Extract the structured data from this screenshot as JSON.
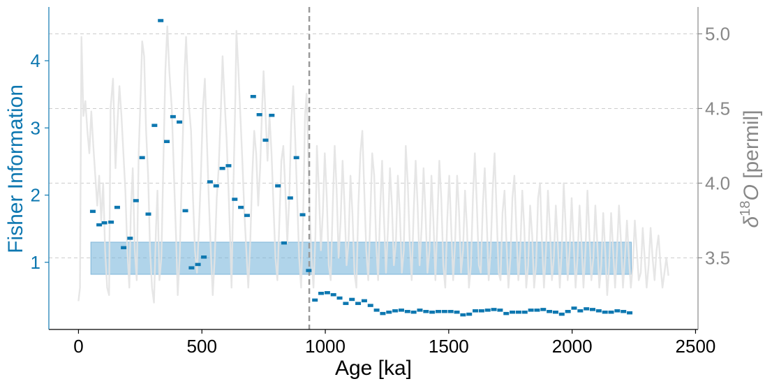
{
  "chart_data": {
    "type": "scatter",
    "xlabel": "Age [ka]",
    "ylabel": "Fisher Information",
    "ylabel_right": "δ18O [permil]",
    "xlim": [
      -120,
      2510
    ],
    "ylim": [
      0.0,
      4.8
    ],
    "ylim_right": [
      3.02,
      5.18
    ],
    "x_ticks": [
      {
        "value": 0,
        "label": "0"
      },
      {
        "value": 500,
        "label": "500"
      },
      {
        "value": 1000,
        "label": "1000"
      },
      {
        "value": 1500,
        "label": "1500"
      },
      {
        "value": 2000,
        "label": "2000"
      },
      {
        "value": 2500,
        "label": "2500"
      }
    ],
    "y_ticks": [
      {
        "value": 1,
        "label": "1"
      },
      {
        "value": 2,
        "label": "2"
      },
      {
        "value": 3,
        "label": "3"
      },
      {
        "value": 4,
        "label": "4"
      }
    ],
    "y_right_ticks": [
      {
        "value": 3.5,
        "label": "3.5"
      },
      {
        "value": 4.0,
        "label": "4.0"
      },
      {
        "value": 4.5,
        "label": "4.5"
      },
      {
        "value": 5.0,
        "label": "5.0"
      }
    ],
    "grid": "right-axis horizontal dashed",
    "colors": {
      "fisher": "#0d77b0",
      "d18o": "#e3e3e3",
      "band": "#6fb0d9",
      "vline": "#999999",
      "right_axis": "#888888"
    },
    "vline_x": 935,
    "band": {
      "x0": 50,
      "x1": 2240,
      "y0": 0.82,
      "y1": 1.3
    },
    "fisher_points": [
      {
        "x": 58,
        "y": 1.76
      },
      {
        "x": 84,
        "y": 1.56
      },
      {
        "x": 105,
        "y": 1.59
      },
      {
        "x": 132,
        "y": 1.6
      },
      {
        "x": 157,
        "y": 1.82
      },
      {
        "x": 183,
        "y": 1.22
      },
      {
        "x": 209,
        "y": 1.36
      },
      {
        "x": 233,
        "y": 1.92
      },
      {
        "x": 258,
        "y": 2.56
      },
      {
        "x": 283,
        "y": 1.72
      },
      {
        "x": 308,
        "y": 3.04
      },
      {
        "x": 333,
        "y": 4.6
      },
      {
        "x": 358,
        "y": 2.8
      },
      {
        "x": 383,
        "y": 3.17
      },
      {
        "x": 409,
        "y": 3.09
      },
      {
        "x": 433,
        "y": 1.77
      },
      {
        "x": 458,
        "y": 0.92
      },
      {
        "x": 484,
        "y": 0.97
      },
      {
        "x": 508,
        "y": 1.08
      },
      {
        "x": 533,
        "y": 2.2
      },
      {
        "x": 558,
        "y": 2.14
      },
      {
        "x": 583,
        "y": 2.4
      },
      {
        "x": 608,
        "y": 2.44
      },
      {
        "x": 633,
        "y": 1.94
      },
      {
        "x": 658,
        "y": 1.82
      },
      {
        "x": 683,
        "y": 1.7
      },
      {
        "x": 708,
        "y": 3.47
      },
      {
        "x": 733,
        "y": 3.2
      },
      {
        "x": 758,
        "y": 2.82
      },
      {
        "x": 783,
        "y": 3.19
      },
      {
        "x": 808,
        "y": 2.14
      },
      {
        "x": 833,
        "y": 1.29
      },
      {
        "x": 858,
        "y": 1.96
      },
      {
        "x": 883,
        "y": 2.56
      },
      {
        "x": 908,
        "y": 1.71
      },
      {
        "x": 933,
        "y": 0.88
      },
      {
        "x": 958,
        "y": 0.44
      },
      {
        "x": 983,
        "y": 0.54
      },
      {
        "x": 1008,
        "y": 0.55
      },
      {
        "x": 1033,
        "y": 0.52
      },
      {
        "x": 1058,
        "y": 0.47
      },
      {
        "x": 1083,
        "y": 0.39
      },
      {
        "x": 1108,
        "y": 0.45
      },
      {
        "x": 1133,
        "y": 0.39
      },
      {
        "x": 1158,
        "y": 0.43
      },
      {
        "x": 1183,
        "y": 0.36
      },
      {
        "x": 1208,
        "y": 0.29
      },
      {
        "x": 1233,
        "y": 0.24
      },
      {
        "x": 1258,
        "y": 0.26
      },
      {
        "x": 1283,
        "y": 0.28
      },
      {
        "x": 1308,
        "y": 0.29
      },
      {
        "x": 1333,
        "y": 0.27
      },
      {
        "x": 1358,
        "y": 0.26
      },
      {
        "x": 1383,
        "y": 0.29
      },
      {
        "x": 1408,
        "y": 0.27
      },
      {
        "x": 1433,
        "y": 0.26
      },
      {
        "x": 1458,
        "y": 0.27
      },
      {
        "x": 1483,
        "y": 0.27
      },
      {
        "x": 1508,
        "y": 0.27
      },
      {
        "x": 1533,
        "y": 0.26
      },
      {
        "x": 1558,
        "y": 0.22
      },
      {
        "x": 1583,
        "y": 0.23
      },
      {
        "x": 1608,
        "y": 0.28
      },
      {
        "x": 1633,
        "y": 0.28
      },
      {
        "x": 1658,
        "y": 0.29
      },
      {
        "x": 1683,
        "y": 0.3
      },
      {
        "x": 1708,
        "y": 0.29
      },
      {
        "x": 1733,
        "y": 0.24
      },
      {
        "x": 1758,
        "y": 0.26
      },
      {
        "x": 1783,
        "y": 0.26
      },
      {
        "x": 1808,
        "y": 0.26
      },
      {
        "x": 1833,
        "y": 0.29
      },
      {
        "x": 1858,
        "y": 0.29
      },
      {
        "x": 1883,
        "y": 0.3
      },
      {
        "x": 1908,
        "y": 0.27
      },
      {
        "x": 1933,
        "y": 0.26
      },
      {
        "x": 1958,
        "y": 0.23
      },
      {
        "x": 1983,
        "y": 0.27
      },
      {
        "x": 2008,
        "y": 0.32
      },
      {
        "x": 2033,
        "y": 0.28
      },
      {
        "x": 2058,
        "y": 0.31
      },
      {
        "x": 2083,
        "y": 0.3
      },
      {
        "x": 2108,
        "y": 0.28
      },
      {
        "x": 2133,
        "y": 0.26
      },
      {
        "x": 2158,
        "y": 0.26
      },
      {
        "x": 2183,
        "y": 0.28
      },
      {
        "x": 2208,
        "y": 0.27
      },
      {
        "x": 2233,
        "y": 0.25
      }
    ],
    "d18o_series": [
      [
        0,
        3.21
      ],
      [
        6,
        3.3
      ],
      [
        12,
        4.98
      ],
      [
        20,
        4.45
      ],
      [
        28,
        4.55
      ],
      [
        36,
        4.35
      ],
      [
        44,
        4.2
      ],
      [
        52,
        4.48
      ],
      [
        60,
        4.25
      ],
      [
        68,
        4.05
      ],
      [
        76,
        3.85
      ],
      [
        84,
        4.05
      ],
      [
        92,
        3.75
      ],
      [
        100,
        4.0
      ],
      [
        108,
        3.55
      ],
      [
        116,
        3.3
      ],
      [
        124,
        3.25
      ],
      [
        130,
        4.5
      ],
      [
        140,
        4.7
      ],
      [
        150,
        4.1
      ],
      [
        158,
        4.4
      ],
      [
        166,
        4.65
      ],
      [
        174,
        4.45
      ],
      [
        182,
        4.2
      ],
      [
        190,
        3.95
      ],
      [
        198,
        3.55
      ],
      [
        206,
        3.3
      ],
      [
        212,
        3.8
      ],
      [
        220,
        4.1
      ],
      [
        228,
        3.55
      ],
      [
        236,
        3.35
      ],
      [
        244,
        4.2
      ],
      [
        252,
        4.6
      ],
      [
        258,
        4.95
      ],
      [
        266,
        4.85
      ],
      [
        274,
        4.35
      ],
      [
        282,
        4.05
      ],
      [
        290,
        3.55
      ],
      [
        298,
        3.3
      ],
      [
        306,
        3.2
      ],
      [
        314,
        3.7
      ],
      [
        320,
        3.95
      ],
      [
        328,
        3.35
      ],
      [
        336,
        3.5
      ],
      [
        344,
        4.15
      ],
      [
        352,
        4.75
      ],
      [
        360,
        5.05
      ],
      [
        368,
        4.75
      ],
      [
        378,
        4.5
      ],
      [
        388,
        4.0
      ],
      [
        396,
        3.6
      ],
      [
        402,
        3.25
      ],
      [
        410,
        3.5
      ],
      [
        420,
        4.15
      ],
      [
        430,
        4.75
      ],
      [
        436,
        4.98
      ],
      [
        446,
        4.55
      ],
      [
        456,
        4.35
      ],
      [
        464,
        3.9
      ],
      [
        472,
        3.55
      ],
      [
        480,
        3.4
      ],
      [
        488,
        3.7
      ],
      [
        496,
        4.05
      ],
      [
        504,
        4.5
      ],
      [
        512,
        4.7
      ],
      [
        520,
        4.3
      ],
      [
        528,
        3.9
      ],
      [
        536,
        3.55
      ],
      [
        544,
        3.25
      ],
      [
        552,
        3.5
      ],
      [
        560,
        3.9
      ],
      [
        568,
        4.1
      ],
      [
        576,
        4.45
      ],
      [
        584,
        4.85
      ],
      [
        592,
        4.55
      ],
      [
        600,
        4.3
      ],
      [
        608,
        3.95
      ],
      [
        616,
        3.55
      ],
      [
        620,
        3.3
      ],
      [
        628,
        4.0
      ],
      [
        636,
        4.6
      ],
      [
        640,
        5.02
      ],
      [
        648,
        4.75
      ],
      [
        656,
        4.45
      ],
      [
        664,
        4.15
      ],
      [
        672,
        3.8
      ],
      [
        680,
        3.55
      ],
      [
        688,
        3.3
      ],
      [
        696,
        3.6
      ],
      [
        704,
        4.05
      ],
      [
        712,
        4.35
      ],
      [
        720,
        4.2
      ],
      [
        728,
        3.85
      ],
      [
        736,
        4.1
      ],
      [
        744,
        4.5
      ],
      [
        750,
        4.75
      ],
      [
        758,
        4.45
      ],
      [
        766,
        4.15
      ],
      [
        774,
        4.45
      ],
      [
        782,
        4.2
      ],
      [
        790,
        3.85
      ],
      [
        798,
        3.5
      ],
      [
        806,
        3.35
      ],
      [
        814,
        3.75
      ],
      [
        822,
        4.15
      ],
      [
        830,
        4.25
      ],
      [
        838,
        3.95
      ],
      [
        846,
        3.6
      ],
      [
        854,
        3.9
      ],
      [
        862,
        4.4
      ],
      [
        870,
        4.65
      ],
      [
        878,
        4.3
      ],
      [
        886,
        3.9
      ],
      [
        894,
        3.5
      ],
      [
        902,
        3.3
      ],
      [
        910,
        3.75
      ],
      [
        918,
        4.45
      ],
      [
        924,
        4.6
      ],
      [
        930,
        4.25
      ],
      [
        936,
        3.85
      ],
      [
        944,
        3.5
      ],
      [
        952,
        3.3
      ],
      [
        960,
        3.65
      ],
      [
        966,
        4.25
      ],
      [
        974,
        3.95
      ],
      [
        982,
        3.55
      ],
      [
        990,
        3.8
      ],
      [
        998,
        4.2
      ],
      [
        1006,
        3.9
      ],
      [
        1014,
        3.45
      ],
      [
        1022,
        3.35
      ],
      [
        1030,
        3.85
      ],
      [
        1038,
        4.25
      ],
      [
        1046,
        3.95
      ],
      [
        1054,
        3.5
      ],
      [
        1062,
        3.75
      ],
      [
        1070,
        4.15
      ],
      [
        1078,
        3.85
      ],
      [
        1086,
        3.45
      ],
      [
        1094,
        3.6
      ],
      [
        1102,
        4.05
      ],
      [
        1110,
        3.8
      ],
      [
        1118,
        3.4
      ],
      [
        1126,
        3.3
      ],
      [
        1134,
        3.85
      ],
      [
        1142,
        4.2
      ],
      [
        1150,
        4.35
      ],
      [
        1158,
        3.95
      ],
      [
        1166,
        3.55
      ],
      [
        1174,
        3.35
      ],
      [
        1182,
        3.75
      ],
      [
        1190,
        4.2
      ],
      [
        1198,
        4.05
      ],
      [
        1206,
        3.6
      ],
      [
        1214,
        3.35
      ],
      [
        1222,
        3.8
      ],
      [
        1230,
        4.15
      ],
      [
        1238,
        3.75
      ],
      [
        1246,
        3.4
      ],
      [
        1254,
        3.7
      ],
      [
        1262,
        4.1
      ],
      [
        1270,
        3.85
      ],
      [
        1278,
        3.45
      ],
      [
        1286,
        3.6
      ],
      [
        1294,
        4.05
      ],
      [
        1302,
        3.8
      ],
      [
        1310,
        3.4
      ],
      [
        1318,
        3.55
      ],
      [
        1326,
        4.25
      ],
      [
        1334,
        4.0
      ],
      [
        1342,
        3.6
      ],
      [
        1350,
        3.35
      ],
      [
        1358,
        3.8
      ],
      [
        1366,
        4.15
      ],
      [
        1374,
        3.85
      ],
      [
        1382,
        3.45
      ],
      [
        1390,
        3.7
      ],
      [
        1398,
        4.1
      ],
      [
        1406,
        3.8
      ],
      [
        1414,
        3.4
      ],
      [
        1422,
        3.55
      ],
      [
        1430,
        4.05
      ],
      [
        1438,
        3.75
      ],
      [
        1446,
        3.35
      ],
      [
        1454,
        3.75
      ],
      [
        1462,
        4.15
      ],
      [
        1470,
        3.9
      ],
      [
        1478,
        3.45
      ],
      [
        1486,
        3.3
      ],
      [
        1494,
        3.75
      ],
      [
        1502,
        4.05
      ],
      [
        1510,
        3.7
      ],
      [
        1518,
        3.35
      ],
      [
        1526,
        3.6
      ],
      [
        1534,
        4.05
      ],
      [
        1542,
        3.8
      ],
      [
        1550,
        3.4
      ],
      [
        1558,
        3.55
      ],
      [
        1566,
        3.95
      ],
      [
        1574,
        3.7
      ],
      [
        1582,
        3.3
      ],
      [
        1590,
        3.45
      ],
      [
        1598,
        3.9
      ],
      [
        1606,
        4.2
      ],
      [
        1614,
        3.85
      ],
      [
        1622,
        3.45
      ],
      [
        1630,
        3.4
      ],
      [
        1638,
        3.85
      ],
      [
        1646,
        4.1
      ],
      [
        1654,
        3.75
      ],
      [
        1662,
        3.35
      ],
      [
        1670,
        3.55
      ],
      [
        1678,
        3.95
      ],
      [
        1686,
        4.2
      ],
      [
        1694,
        3.8
      ],
      [
        1702,
        3.4
      ],
      [
        1710,
        3.35
      ],
      [
        1718,
        3.8
      ],
      [
        1726,
        3.95
      ],
      [
        1734,
        3.6
      ],
      [
        1742,
        3.3
      ],
      [
        1750,
        3.5
      ],
      [
        1758,
        3.9
      ],
      [
        1766,
        4.05
      ],
      [
        1774,
        3.7
      ],
      [
        1782,
        3.35
      ],
      [
        1790,
        3.55
      ],
      [
        1798,
        3.95
      ],
      [
        1806,
        3.7
      ],
      [
        1814,
        3.3
      ],
      [
        1822,
        3.45
      ],
      [
        1830,
        3.85
      ],
      [
        1838,
        3.65
      ],
      [
        1846,
        3.3
      ],
      [
        1854,
        3.45
      ],
      [
        1862,
        3.9
      ],
      [
        1870,
        4.0
      ],
      [
        1878,
        3.6
      ],
      [
        1886,
        3.3
      ],
      [
        1894,
        3.55
      ],
      [
        1902,
        3.95
      ],
      [
        1910,
        3.7
      ],
      [
        1918,
        3.35
      ],
      [
        1926,
        3.5
      ],
      [
        1934,
        3.85
      ],
      [
        1942,
        3.6
      ],
      [
        1950,
        3.3
      ],
      [
        1958,
        3.55
      ],
      [
        1966,
        4.0
      ],
      [
        1974,
        3.7
      ],
      [
        1982,
        3.35
      ],
      [
        1990,
        3.55
      ],
      [
        1998,
        3.9
      ],
      [
        2006,
        3.6
      ],
      [
        2014,
        3.3
      ],
      [
        2022,
        3.5
      ],
      [
        2030,
        3.85
      ],
      [
        2038,
        3.6
      ],
      [
        2046,
        3.3
      ],
      [
        2054,
        3.55
      ],
      [
        2062,
        3.95
      ],
      [
        2070,
        3.65
      ],
      [
        2078,
        3.35
      ],
      [
        2086,
        3.5
      ],
      [
        2094,
        3.85
      ],
      [
        2102,
        3.6
      ],
      [
        2110,
        3.3
      ],
      [
        2118,
        3.45
      ],
      [
        2126,
        3.8
      ],
      [
        2134,
        3.55
      ],
      [
        2142,
        3.25
      ],
      [
        2150,
        3.45
      ],
      [
        2158,
        3.8
      ],
      [
        2166,
        3.55
      ],
      [
        2174,
        3.3
      ],
      [
        2182,
        3.55
      ],
      [
        2190,
        3.85
      ],
      [
        2198,
        3.6
      ],
      [
        2206,
        3.3
      ],
      [
        2214,
        3.5
      ],
      [
        2222,
        3.75
      ],
      [
        2230,
        3.5
      ],
      [
        2238,
        3.3
      ],
      [
        2246,
        3.45
      ],
      [
        2254,
        3.75
      ],
      [
        2262,
        3.55
      ],
      [
        2270,
        3.35
      ],
      [
        2278,
        3.4
      ],
      [
        2286,
        3.7
      ],
      [
        2294,
        3.5
      ],
      [
        2302,
        3.3
      ],
      [
        2310,
        3.45
      ],
      [
        2318,
        3.7
      ],
      [
        2326,
        3.5
      ],
      [
        2334,
        3.35
      ],
      [
        2342,
        3.55
      ],
      [
        2350,
        3.65
      ],
      [
        2358,
        3.45
      ],
      [
        2366,
        3.3
      ],
      [
        2374,
        3.4
      ],
      [
        2382,
        3.5
      ],
      [
        2390,
        3.38
      ]
    ]
  }
}
